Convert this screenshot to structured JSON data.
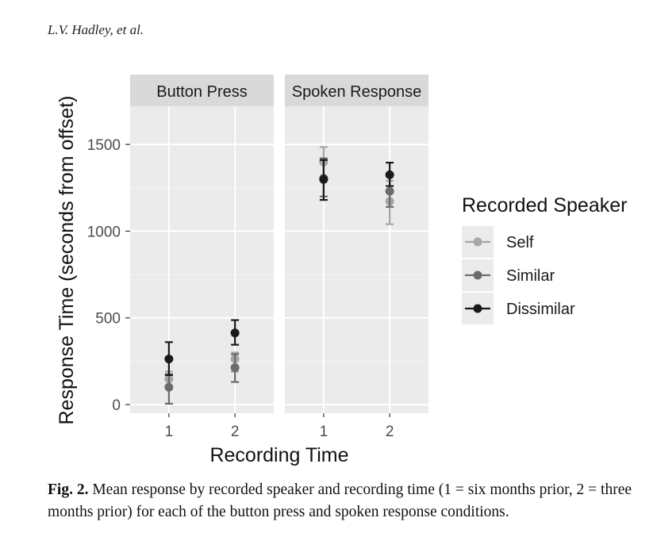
{
  "header": {
    "authors": "L.V. Hadley, et al."
  },
  "caption": {
    "label": "Fig. 2.",
    "text": "Mean response by recorded speaker and recording time (1 = six months prior, 2 = three months prior) for each of the button press and spoken response conditions."
  },
  "chart_data": {
    "type": "scatter",
    "facets": [
      "Button Press",
      "Spoken Response"
    ],
    "x_categories": [
      "1",
      "2"
    ],
    "xlabel": "Recording Time",
    "ylabel": "Response Time (seconds from offset)",
    "ylim": [
      -50,
      1720
    ],
    "yticks": [
      0,
      500,
      1000,
      1500
    ],
    "grid": true,
    "legend": {
      "title": "Recorded Speaker",
      "position": "right"
    },
    "series": [
      {
        "name": "Self",
        "color": "#a6a6a6",
        "points": [
          {
            "facet": "Button Press",
            "x": "1",
            "y": 148,
            "lo": 100,
            "hi": 190
          },
          {
            "facet": "Button Press",
            "x": "2",
            "y": 262,
            "lo": 190,
            "hi": 300
          },
          {
            "facet": "Spoken Response",
            "x": "1",
            "y": 1398,
            "lo": 1310,
            "hi": 1485
          },
          {
            "facet": "Spoken Response",
            "x": "2",
            "y": 1172,
            "lo": 1040,
            "hi": 1290
          }
        ]
      },
      {
        "name": "Similar",
        "color": "#6b6b6b",
        "points": [
          {
            "facet": "Button Press",
            "x": "1",
            "y": 100,
            "lo": 5,
            "hi": 175
          },
          {
            "facet": "Button Press",
            "x": "2",
            "y": 213,
            "lo": 130,
            "hi": 290
          },
          {
            "facet": "Spoken Response",
            "x": "1",
            "y": 1305,
            "lo": 1200,
            "hi": 1420
          },
          {
            "facet": "Spoken Response",
            "x": "2",
            "y": 1230,
            "lo": 1140,
            "hi": 1320
          }
        ]
      },
      {
        "name": "Dissimilar",
        "color": "#1a1a1a",
        "points": [
          {
            "facet": "Button Press",
            "x": "1",
            "y": 263,
            "lo": 170,
            "hi": 360
          },
          {
            "facet": "Button Press",
            "x": "2",
            "y": 413,
            "lo": 345,
            "hi": 487
          },
          {
            "facet": "Spoken Response",
            "x": "1",
            "y": 1298,
            "lo": 1180,
            "hi": 1410
          },
          {
            "facet": "Spoken Response",
            "x": "2",
            "y": 1325,
            "lo": 1260,
            "hi": 1395
          }
        ]
      }
    ]
  }
}
